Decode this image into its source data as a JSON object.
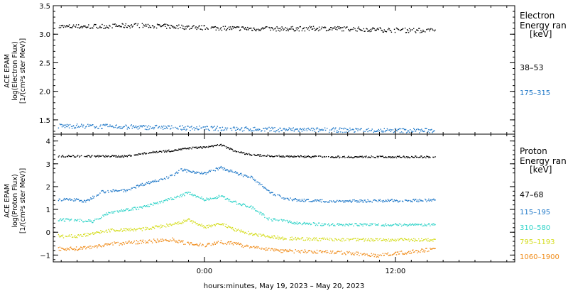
{
  "chart_data": [
    {
      "type": "scatter",
      "panel": "electron",
      "ylabel_lines": [
        "ACE EPAM",
        "log(Electron Flux)",
        "[1/(cm²s ster MeV)]"
      ],
      "ylim": [
        1.25,
        3.5
      ],
      "yticks": [
        "1.5",
        "2.0",
        "2.5",
        "3.0",
        "3.5"
      ],
      "yticks_values": [
        1.5,
        2.0,
        2.5,
        3.0,
        3.5
      ],
      "legend": {
        "title_lines": [
          "Electron",
          "Energy ran",
          "[keV]"
        ]
      },
      "series": [
        {
          "name": "38–53",
          "color": "#000000",
          "base": 3.12,
          "noise": 0.04,
          "profile": [
            [
              -8,
              3.14
            ],
            [
              -4,
              3.16
            ],
            [
              0,
              3.12
            ],
            [
              4,
              3.1
            ],
            [
              8,
              3.11
            ],
            [
              12,
              3.08
            ],
            [
              14,
              3.07
            ]
          ]
        },
        {
          "name": "175–315",
          "color": "#1f78c8",
          "base": 1.37,
          "noise": 0.04,
          "profile": [
            [
              -8,
              1.4
            ],
            [
              -4,
              1.38
            ],
            [
              0,
              1.36
            ],
            [
              4,
              1.34
            ],
            [
              8,
              1.33
            ],
            [
              12,
              1.32
            ],
            [
              14,
              1.32
            ]
          ]
        }
      ]
    },
    {
      "type": "scatter",
      "panel": "proton",
      "ylabel_lines": [
        "ACE EPAM",
        "log(Proton Flux)",
        "[1/(cm²s ster MeV)]"
      ],
      "ylim": [
        -1.3,
        4.3
      ],
      "yticks": [
        "−1",
        "0",
        "1",
        "2",
        "3",
        "4"
      ],
      "yticks_values": [
        -1,
        0,
        1,
        2,
        3,
        4
      ],
      "legend": {
        "title_lines": [
          "Proton",
          "Energy ran",
          "[keV]"
        ]
      },
      "series": [
        {
          "name": "47–68",
          "color": "#000000",
          "noise": 0.04,
          "profile": [
            [
              -8,
              3.35
            ],
            [
              -5,
              3.35
            ],
            [
              -3,
              3.55
            ],
            [
              -2,
              3.6
            ],
            [
              -1,
              3.7
            ],
            [
              0,
              3.75
            ],
            [
              1,
              3.85
            ],
            [
              2,
              3.55
            ],
            [
              3,
              3.4
            ],
            [
              5,
              3.35
            ],
            [
              8,
              3.32
            ],
            [
              14,
              3.32
            ]
          ]
        },
        {
          "name": "115–195",
          "color": "#1f78c8",
          "noise": 0.06,
          "profile": [
            [
              -8,
              1.45
            ],
            [
              -7.5,
              1.35
            ],
            [
              -6.5,
              1.8
            ],
            [
              -5,
              1.85
            ],
            [
              -4,
              2.1
            ],
            [
              -3,
              2.3
            ],
            [
              -2,
              2.5
            ],
            [
              -1.5,
              2.75
            ],
            [
              0,
              2.6
            ],
            [
              1,
              2.85
            ],
            [
              2,
              2.6
            ],
            [
              3,
              2.4
            ],
            [
              4,
              1.8
            ],
            [
              5,
              1.5
            ],
            [
              6,
              1.42
            ],
            [
              8,
              1.38
            ],
            [
              14,
              1.42
            ]
          ]
        },
        {
          "name": "310–580",
          "color": "#2ed3c8",
          "noise": 0.06,
          "profile": [
            [
              -8,
              0.55
            ],
            [
              -7,
              0.5
            ],
            [
              -6,
              0.9
            ],
            [
              -4,
              1.1
            ],
            [
              -3,
              1.3
            ],
            [
              -2,
              1.5
            ],
            [
              -1,
              1.75
            ],
            [
              0,
              1.45
            ],
            [
              1,
              1.6
            ],
            [
              2,
              1.3
            ],
            [
              3,
              1.1
            ],
            [
              4,
              0.6
            ],
            [
              6,
              0.4
            ],
            [
              8,
              0.35
            ],
            [
              14,
              0.35
            ]
          ]
        },
        {
          "name": "795–1193",
          "color": "#d4dc1a",
          "noise": 0.07,
          "profile": [
            [
              -8,
              -0.15
            ],
            [
              -6,
              0.1
            ],
            [
              -4,
              0.15
            ],
            [
              -2,
              0.35
            ],
            [
              -1,
              0.55
            ],
            [
              0,
              0.25
            ],
            [
              1,
              0.4
            ],
            [
              2,
              0.1
            ],
            [
              3,
              -0.05
            ],
            [
              5,
              -0.25
            ],
            [
              8,
              -0.3
            ],
            [
              14,
              -0.32
            ]
          ]
        },
        {
          "name": "1060–1900",
          "color": "#f08c1a",
          "noise": 0.08,
          "profile": [
            [
              -8,
              -0.7
            ],
            [
              -6,
              -0.5
            ],
            [
              -4,
              -0.4
            ],
            [
              -2,
              -0.3
            ],
            [
              -1,
              -0.5
            ],
            [
              0,
              -0.55
            ],
            [
              1,
              -0.4
            ],
            [
              2,
              -0.5
            ],
            [
              3,
              -0.65
            ],
            [
              5,
              -0.8
            ],
            [
              8,
              -0.85
            ],
            [
              11,
              -1.0
            ],
            [
              14,
              -0.75
            ]
          ]
        }
      ]
    }
  ],
  "x_axis": {
    "range_hours": [
      -9.5,
      19.5
    ],
    "data_end_hours": 14.5,
    "ticks": [
      -12,
      0,
      12
    ],
    "tick_labels": [
      "0:00",
      "12:00"
    ],
    "tick_label_hours": [
      0,
      12
    ],
    "minor_step_hours": 1,
    "label": "hours:minutes, May 19, 2023 – May 20, 2023"
  }
}
